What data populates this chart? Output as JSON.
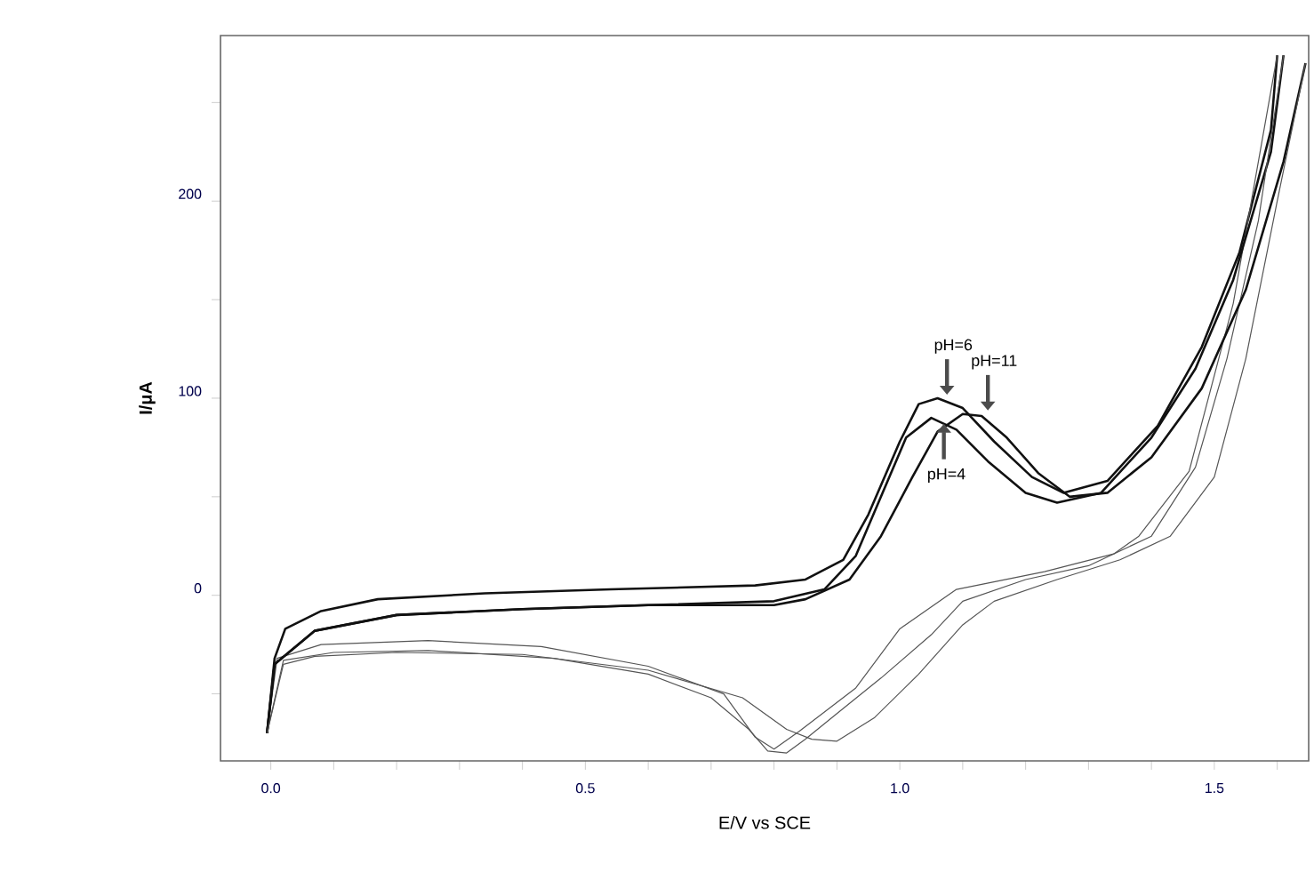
{
  "chart_data": {
    "type": "line",
    "xlabel": "E/V vs SCE",
    "ylabel": "I/μA",
    "xlim": [
      -0.08,
      1.65
    ],
    "ylim": [
      -84,
      284
    ],
    "xticks": [
      {
        "value": 0,
        "label": "0.0"
      },
      {
        "value": 0.1,
        "label": null
      },
      {
        "value": 0.2,
        "label": null
      },
      {
        "value": 0.3,
        "label": null
      },
      {
        "value": 0.4,
        "label": null
      },
      {
        "value": 0.5,
        "label": "0.5"
      },
      {
        "value": 0.6,
        "label": null
      },
      {
        "value": 0.7,
        "label": null
      },
      {
        "value": 0.8,
        "label": null
      },
      {
        "value": 0.9,
        "label": null
      },
      {
        "value": 1.0,
        "label": "1.0"
      },
      {
        "value": 1.1,
        "label": null
      },
      {
        "value": 1.2,
        "label": null
      },
      {
        "value": 1.3,
        "label": null
      },
      {
        "value": 1.4,
        "label": null
      },
      {
        "value": 1.5,
        "label": "1.5"
      },
      {
        "value": 1.6,
        "label": null
      }
    ],
    "yticks": [
      {
        "value": -50,
        "label": null
      },
      0,
      {
        "value": 50,
        "label": null
      },
      100,
      {
        "value": 150,
        "label": null
      },
      200,
      {
        "value": 250,
        "label": null
      }
    ],
    "grid": false,
    "legend": false,
    "marker": "none",
    "line_style": "solid",
    "annotations": [
      {
        "text": "pH=6",
        "x": 1.075,
        "y": 100
      },
      {
        "text": "pH=11",
        "x": 1.14,
        "y": 92
      },
      {
        "text": "pH=4",
        "x": 1.07,
        "y": 87
      }
    ],
    "series": [
      {
        "color": "#111111",
        "x": [
          -0.006,
          0.006,
          0.023,
          0.08,
          0.17,
          0.34,
          0.54,
          0.77,
          0.85,
          0.91,
          0.95,
          1.0,
          1.03,
          1.06,
          1.1,
          1.15,
          1.21,
          1.26,
          1.33,
          1.41,
          1.48,
          1.54,
          1.59,
          1.6
        ],
        "values": [
          -70,
          -32,
          -17,
          -8,
          -2,
          1,
          3,
          5,
          8,
          18,
          41,
          78,
          97,
          100,
          95,
          78,
          60,
          52,
          58,
          86,
          126,
          174,
          236,
          274
        ]
      },
      {
        "color": "#555555",
        "x": [
          1.6,
          1.53,
          1.46,
          1.38,
          1.34,
          1.23,
          1.09,
          1.0,
          0.93,
          0.84,
          0.8,
          0.77,
          0.72,
          0.6,
          0.43,
          0.25,
          0.08,
          0.01,
          -0.006
        ],
        "values": [
          274,
          148,
          63,
          30,
          21,
          12,
          3,
          -17,
          -47,
          -69,
          -78,
          -72,
          -50,
          -36,
          -26,
          -23,
          -25,
          -32,
          -70
        ]
      },
      {
        "color": "#111111",
        "x": [
          -0.006,
          0.006,
          0.07,
          0.2,
          0.4,
          0.6,
          0.8,
          0.88,
          0.93,
          0.97,
          1.01,
          1.05,
          1.09,
          1.14,
          1.2,
          1.25,
          1.32,
          1.4,
          1.47,
          1.53,
          1.59,
          1.61
        ],
        "values": [
          -70,
          -35,
          -18,
          -10,
          -7,
          -5,
          -3,
          3,
          20,
          50,
          80,
          90,
          84,
          68,
          52,
          47,
          52,
          80,
          115,
          160,
          225,
          274
        ]
      },
      {
        "color": "#555555",
        "x": [
          1.61,
          1.57,
          1.52,
          1.47,
          1.4,
          1.3,
          1.2,
          1.1,
          1.05,
          0.97,
          0.9,
          0.85,
          0.82,
          0.79,
          0.76,
          0.7,
          0.6,
          0.45,
          0.25,
          0.1,
          0.02,
          -0.006
        ],
        "values": [
          274,
          190,
          120,
          65,
          30,
          15,
          8,
          -3,
          -20,
          -42,
          -60,
          -73,
          -80,
          -79,
          -68,
          -52,
          -40,
          -32,
          -28,
          -29,
          -33,
          -70
        ]
      },
      {
        "color": "#111111",
        "x": [
          -0.006,
          0.006,
          0.07,
          0.2,
          0.4,
          0.6,
          0.8,
          0.85,
          0.92,
          0.97,
          1.02,
          1.06,
          1.1,
          1.13,
          1.17,
          1.22,
          1.27,
          1.33,
          1.4,
          1.48,
          1.55,
          1.61,
          1.645
        ],
        "values": [
          -70,
          -35,
          -18,
          -10,
          -7,
          -5,
          -5,
          -2,
          8,
          30,
          60,
          83,
          92,
          91,
          80,
          62,
          50,
          52,
          70,
          105,
          155,
          220,
          270
        ]
      },
      {
        "color": "#555555",
        "x": [
          1.645,
          1.6,
          1.55,
          1.5,
          1.43,
          1.35,
          1.25,
          1.15,
          1.1,
          1.03,
          0.96,
          0.9,
          0.86,
          0.82,
          0.75,
          0.6,
          0.4,
          0.2,
          0.07,
          0.02,
          -0.006
        ],
        "values": [
          270,
          200,
          120,
          60,
          30,
          18,
          8,
          -3,
          -15,
          -40,
          -62,
          -74,
          -73,
          -68,
          -52,
          -38,
          -30,
          -29,
          -31,
          -35,
          -70
        ]
      }
    ]
  }
}
